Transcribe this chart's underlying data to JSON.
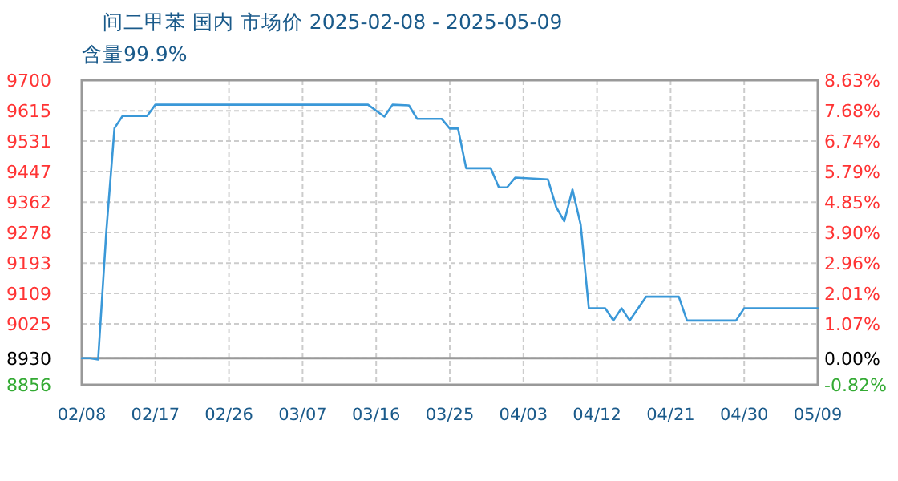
{
  "chart_data": {
    "type": "line",
    "title": "间二甲苯 国内 市场价 2025-02-08 - 2025-05-09",
    "subtitle": "含量99.9%",
    "x": [
      "2025-02-08",
      "2025-02-09",
      "2025-02-10",
      "2025-02-11",
      "2025-02-12",
      "2025-02-13",
      "2025-02-16",
      "2025-02-17",
      "2025-03-15",
      "2025-03-17",
      "2025-03-18",
      "2025-03-20",
      "2025-03-21",
      "2025-03-24",
      "2025-03-25",
      "2025-03-26",
      "2025-03-27",
      "2025-03-30",
      "2025-03-31",
      "2025-04-01",
      "2025-04-02",
      "2025-04-06",
      "2025-04-07",
      "2025-04-08",
      "2025-04-09",
      "2025-04-10",
      "2025-04-11",
      "2025-04-13",
      "2025-04-14",
      "2025-04-15",
      "2025-04-16",
      "2025-04-18",
      "2025-04-22",
      "2025-04-23",
      "2025-04-29",
      "2025-04-30",
      "2025-05-09"
    ],
    "series": [
      {
        "color": "#3a98d8",
        "values": [
          8930,
          8930,
          8926,
          9280,
          9567,
          9601,
          9601,
          9632,
          9632,
          9599,
          9632,
          9630,
          9593,
          9593,
          9566,
          9566,
          9456,
          9456,
          9403,
          9403,
          9430,
          9425,
          9349,
          9309,
          9397,
          9300,
          9068,
          9068,
          9034,
          9068,
          9034,
          9100,
          9100,
          9034,
          9034,
          9068,
          9068
        ]
      }
    ],
    "xlim": [
      "2025-02-08",
      "2025-05-09"
    ],
    "xticks": [
      {
        "value": "2025-02-08",
        "label": "02/08"
      },
      {
        "value": "2025-02-17",
        "label": "02/17"
      },
      {
        "value": "2025-02-26",
        "label": "02/26"
      },
      {
        "value": "2025-03-07",
        "label": "03/07"
      },
      {
        "value": "2025-03-16",
        "label": "03/16"
      },
      {
        "value": "2025-03-25",
        "label": "03/25"
      },
      {
        "value": "2025-04-03",
        "label": "04/03"
      },
      {
        "value": "2025-04-12",
        "label": "04/12"
      },
      {
        "value": "2025-04-21",
        "label": "04/21"
      },
      {
        "value": "2025-04-30",
        "label": "04/30"
      },
      {
        "value": "2025-05-09",
        "label": "05/09"
      }
    ],
    "ylim": [
      8856,
      9700
    ],
    "yticks": [
      8856,
      8930,
      9025,
      9109,
      9193,
      9278,
      9362,
      9447,
      9531,
      9615,
      9700
    ],
    "y2lim": [
      -0.82,
      8.63
    ],
    "y2ticks": [
      {
        "value": -0.82,
        "label": "-0.82%"
      },
      {
        "value": 0,
        "label": "0.00%"
      },
      {
        "value": 1.07,
        "label": "1.07%"
      },
      {
        "value": 2.01,
        "label": "2.01%"
      },
      {
        "value": 2.96,
        "label": "2.96%"
      },
      {
        "value": 3.9,
        "label": "3.90%"
      },
      {
        "value": 4.85,
        "label": "4.85%"
      },
      {
        "value": 5.79,
        "label": "5.79%"
      },
      {
        "value": 6.74,
        "label": "6.74%"
      },
      {
        "value": 7.68,
        "label": "7.68%"
      },
      {
        "value": 8.63,
        "label": "8.63%"
      }
    ],
    "grid": true,
    "ref_lines": [
      {
        "axis": "y",
        "value": 8930,
        "color": "#999999"
      }
    ]
  }
}
